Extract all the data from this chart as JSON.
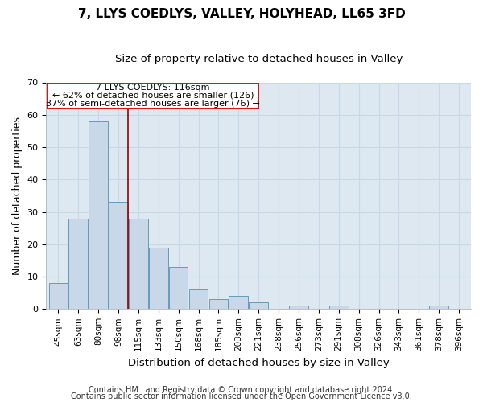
{
  "title": "7, LLYS COEDLYS, VALLEY, HOLYHEAD, LL65 3FD",
  "subtitle": "Size of property relative to detached houses in Valley",
  "xlabel": "Distribution of detached houses by size in Valley",
  "ylabel": "Number of detached properties",
  "footer_line1": "Contains HM Land Registry data © Crown copyright and database right 2024.",
  "footer_line2": "Contains public sector information licensed under the Open Government Licence v3.0.",
  "categories": [
    "45sqm",
    "63sqm",
    "80sqm",
    "98sqm",
    "115sqm",
    "133sqm",
    "150sqm",
    "168sqm",
    "185sqm",
    "203sqm",
    "221sqm",
    "238sqm",
    "256sqm",
    "273sqm",
    "291sqm",
    "308sqm",
    "326sqm",
    "343sqm",
    "361sqm",
    "378sqm",
    "396sqm"
  ],
  "values": [
    8,
    28,
    58,
    33,
    28,
    19,
    13,
    6,
    3,
    4,
    2,
    0,
    1,
    0,
    1,
    0,
    0,
    0,
    0,
    1,
    0
  ],
  "bar_color": "#c8d8e8",
  "bar_edge_color": "#6699bb",
  "property_line_color": "#990000",
  "annotation_line1": "7 LLYS COEDLYS: 116sqm",
  "annotation_line2": "← 62% of detached houses are smaller (126)",
  "annotation_line3": "37% of semi-detached houses are larger (76) →",
  "annotation_box_color": "#ffffff",
  "annotation_box_edge_color": "#cc0000",
  "ylim": [
    0,
    70
  ],
  "yticks": [
    0,
    10,
    20,
    30,
    40,
    50,
    60,
    70
  ],
  "grid_color": "#c8d8e8",
  "background_color": "#dde8f0",
  "title_fontsize": 11,
  "subtitle_fontsize": 9.5,
  "axis_label_fontsize": 9,
  "tick_fontsize": 7.5,
  "footer_fontsize": 7
}
